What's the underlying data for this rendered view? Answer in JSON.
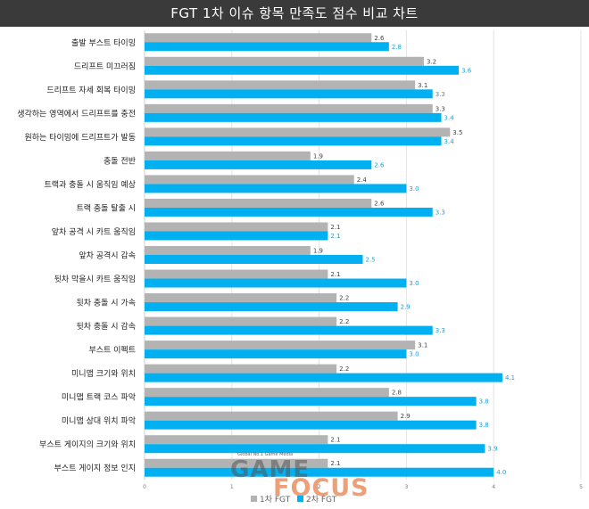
{
  "chart_data": {
    "type": "bar",
    "orientation": "horizontal",
    "title": "FGT 1차 이슈 항목 만족도 점수 비교 차트",
    "categories": [
      "출발 부스트 타이밍",
      "드리프트 미끄러짐",
      "드리프트 자세 회복 타이밍",
      "생각하는 영역에서 드리프트를 충전",
      "원하는 타이밍에 드리프트가 발동",
      "충돌 전반",
      "트랙과 충돌 시 움직임 예상",
      "트랙 충돌 탈출 시",
      "앞차 공격 시 카트 움직임",
      "앞차 공격시 감속",
      "뒷차 막을시 카트 움직임",
      "뒷차 충돌 시 가속",
      "뒷차 충돌 시 감속",
      "부스트 이펙트",
      "미니맵 크기와 위치",
      "미니맵 트랙 코스 파악",
      "미니맵 상대 위치 파악",
      "부스트 게이지의 크기와 위치",
      "부스트 게이지 정보 인지"
    ],
    "series": [
      {
        "name": "1차 FGT",
        "color": "#b3b3b3",
        "values": [
          2.6,
          3.2,
          3.1,
          3.3,
          3.5,
          1.9,
          2.4,
          2.6,
          2.1,
          1.9,
          2.1,
          2.2,
          2.2,
          3.1,
          2.2,
          2.8,
          2.9,
          2.1,
          2.1
        ]
      },
      {
        "name": "2차 FGT",
        "color": "#00b0f0",
        "values": [
          2.8,
          3.6,
          3.3,
          3.4,
          3.4,
          2.6,
          3.0,
          3.3,
          2.1,
          2.5,
          3.0,
          2.9,
          3.3,
          3.0,
          4.1,
          3.8,
          3.8,
          3.9,
          4.0
        ]
      }
    ],
    "xlim": [
      0,
      5
    ],
    "xticks": [
      "0",
      "1",
      "2",
      "3",
      "4",
      "5"
    ],
    "grid": true,
    "legend_position": "bottom"
  },
  "watermark": {
    "tagline": "Global No.1 Game Media",
    "brand_top": "GAME",
    "brand_bottom": "FOCUS"
  }
}
